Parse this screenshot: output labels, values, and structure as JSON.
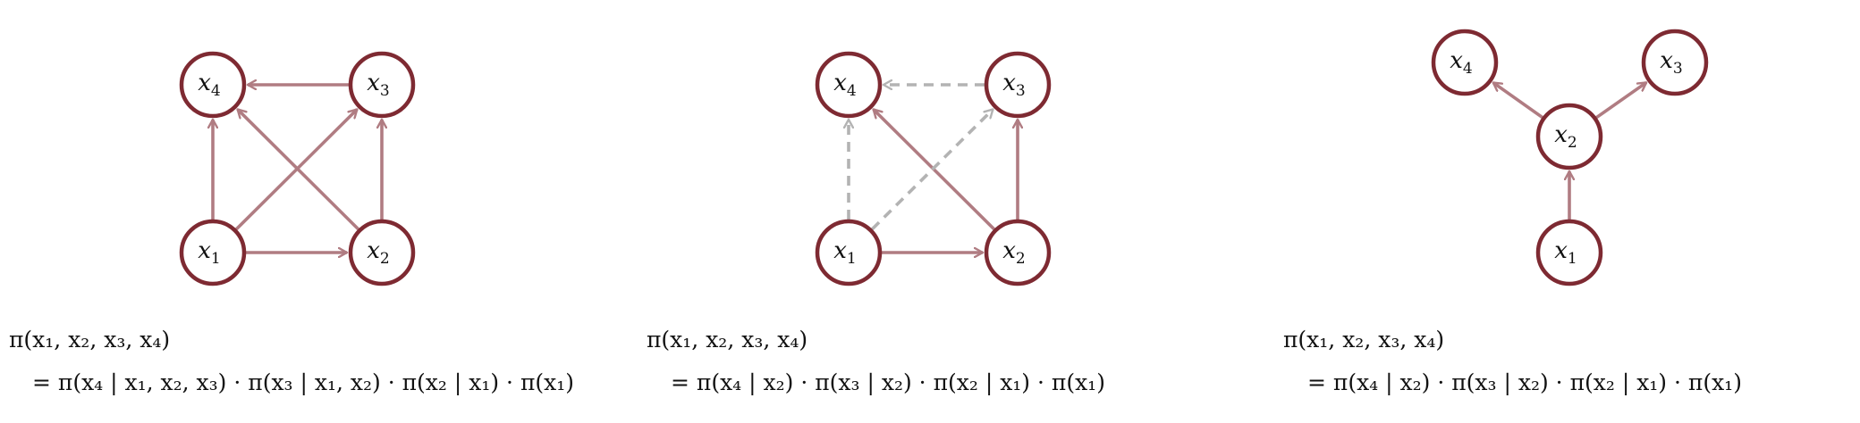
{
  "diagrams": [
    {
      "nodes": [
        {
          "id": "x4",
          "var": "x",
          "sub": "4"
        },
        {
          "id": "x3",
          "var": "x",
          "sub": "3"
        },
        {
          "id": "x1",
          "var": "x",
          "sub": "1"
        },
        {
          "id": "x2",
          "var": "x",
          "sub": "2"
        }
      ],
      "edges": [
        {
          "from": "x1",
          "to": "x2",
          "style": "solid"
        },
        {
          "from": "x1",
          "to": "x4",
          "style": "solid"
        },
        {
          "from": "x1",
          "to": "x3",
          "style": "solid"
        },
        {
          "from": "x2",
          "to": "x3",
          "style": "solid"
        },
        {
          "from": "x2",
          "to": "x4",
          "style": "solid"
        },
        {
          "from": "x3",
          "to": "x4",
          "style": "solid"
        }
      ],
      "formula_line1": "π(x₁, x₂, x₃, x₄)",
      "formula_line2": "= π(x₄ | x₁, x₂, x₃) · π(x₃ | x₁, x₂) · π(x₂ | x₁) · π(x₁)"
    },
    {
      "nodes": [
        {
          "id": "x4",
          "var": "x",
          "sub": "4"
        },
        {
          "id": "x3",
          "var": "x",
          "sub": "3"
        },
        {
          "id": "x1",
          "var": "x",
          "sub": "1"
        },
        {
          "id": "x2",
          "var": "x",
          "sub": "2"
        }
      ],
      "edges": [
        {
          "from": "x1",
          "to": "x2",
          "style": "solid"
        },
        {
          "from": "x2",
          "to": "x3",
          "style": "solid"
        },
        {
          "from": "x2",
          "to": "x4",
          "style": "solid"
        },
        {
          "from": "x1",
          "to": "x4",
          "style": "dashed"
        },
        {
          "from": "x1",
          "to": "x3",
          "style": "dashed"
        },
        {
          "from": "x3",
          "to": "x4",
          "style": "dashed"
        }
      ],
      "formula_line1": "π(x₁, x₂, x₃, x₄)",
      "formula_line2": "= π(x₄ | x₂) · π(x₃ | x₂) · π(x₂ | x₁) · π(x₁)"
    },
    {
      "nodes": [
        {
          "id": "x4",
          "var": "x",
          "sub": "4"
        },
        {
          "id": "x3",
          "var": "x",
          "sub": "3"
        },
        {
          "id": "x2",
          "var": "x",
          "sub": "2"
        },
        {
          "id": "x1",
          "var": "x",
          "sub": "1"
        }
      ],
      "edges": [
        {
          "from": "x1",
          "to": "x2",
          "style": "solid"
        },
        {
          "from": "x2",
          "to": "x4",
          "style": "solid"
        },
        {
          "from": "x2",
          "to": "x3",
          "style": "solid"
        }
      ],
      "formula_line1": "π(x₁, x₂, x₃, x₄)",
      "formula_line2": "= π(x₄ | x₂) · π(x₃ | x₂) · π(x₂ | x₁) · π(x₁)"
    }
  ],
  "colors": {
    "node_stroke": "#7e2a32",
    "edge_solid": "#b07c82",
    "edge_dashed": "#b3b3b3"
  }
}
